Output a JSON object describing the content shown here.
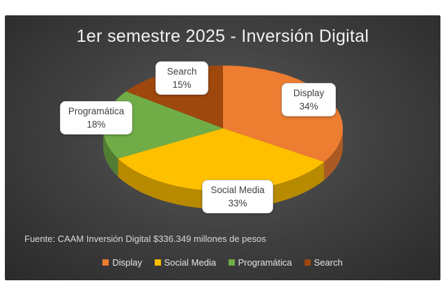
{
  "chart_data": {
    "type": "pie",
    "title": "1er semestre 2025 - Inversión Digital",
    "categories": [
      "Display",
      "Social Media",
      "Programática",
      "Search"
    ],
    "values": [
      34,
      33,
      18,
      15
    ],
    "value_labels": [
      "34%",
      "33%",
      "18%",
      "15%"
    ],
    "colors": [
      "#ED7D31",
      "#FFC000",
      "#70AD47",
      "#9E480E"
    ],
    "legend_position": "bottom",
    "note": "Fuente: CAAM Inversión Digital $336.349 millones de pesos"
  }
}
